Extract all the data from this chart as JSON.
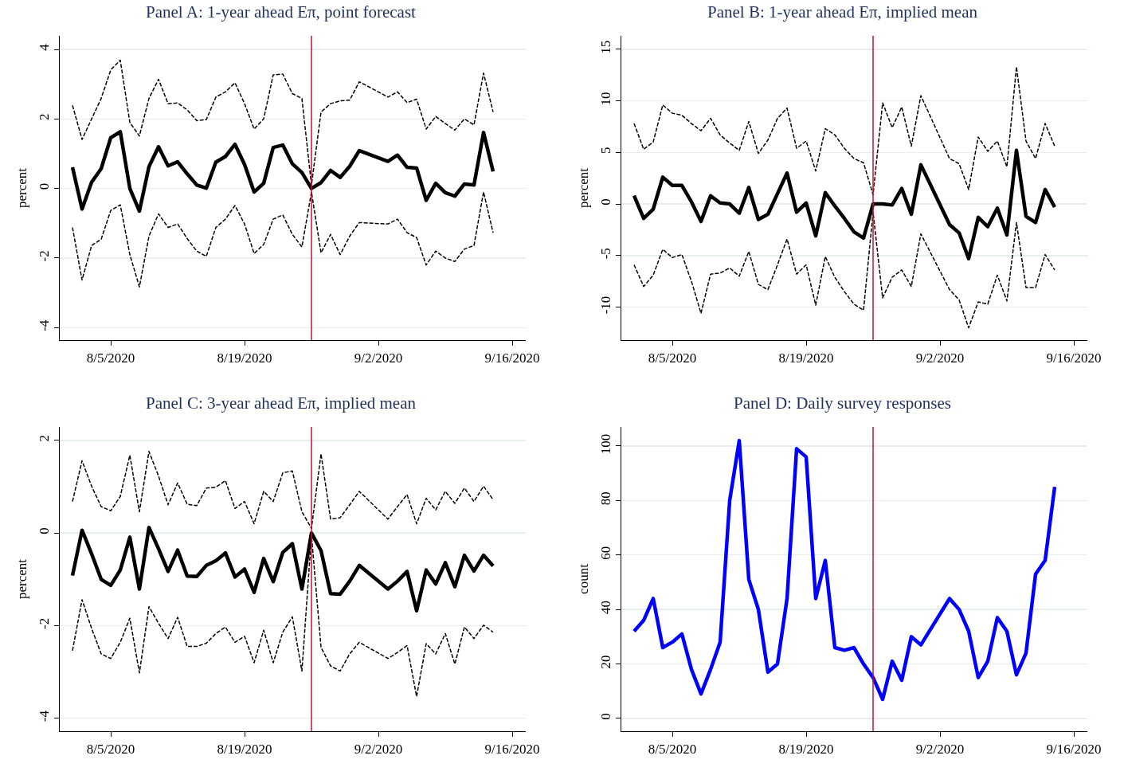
{
  "chart_data": [
    {
      "type": "line",
      "title": "Panel A: 1-year ahead Eπ, point forecast",
      "ylabel": "percent",
      "x": [
        "2020-08-01",
        "2020-08-02",
        "2020-08-03",
        "2020-08-04",
        "2020-08-05",
        "2020-08-06",
        "2020-08-07",
        "2020-08-08",
        "2020-08-09",
        "2020-08-10",
        "2020-08-11",
        "2020-08-12",
        "2020-08-13",
        "2020-08-14",
        "2020-08-15",
        "2020-08-16",
        "2020-08-17",
        "2020-08-18",
        "2020-08-19",
        "2020-08-20",
        "2020-08-21",
        "2020-08-22",
        "2020-08-23",
        "2020-08-24",
        "2020-08-25",
        "2020-08-26",
        "2020-08-27",
        "2020-08-28",
        "2020-08-29",
        "2020-08-30",
        "2020-08-31",
        "2020-09-03",
        "2020-09-04",
        "2020-09-05",
        "2020-09-06",
        "2020-09-07",
        "2020-09-08",
        "2020-09-09",
        "2020-09-10",
        "2020-09-11",
        "2020-09-12",
        "2020-09-13",
        "2020-09-14"
      ],
      "series": [
        {
          "color": "#000000",
          "line_style": "dashed",
          "values": [
            2.39,
            1.41,
            2.0,
            2.59,
            3.41,
            3.69,
            1.9,
            1.51,
            2.59,
            3.14,
            2.44,
            2.46,
            2.26,
            1.95,
            1.98,
            2.63,
            2.78,
            3.04,
            2.44,
            1.71,
            2.0,
            3.27,
            3.29,
            2.73,
            2.59,
            0.1,
            2.2,
            2.44,
            2.52,
            2.54,
            3.07,
            2.63,
            2.78,
            2.47,
            2.57,
            1.71,
            2.07,
            1.87,
            1.68,
            2.0,
            1.83,
            3.32,
            2.2
          ]
        },
        {
          "color": "#000000",
          "line_style": "solid",
          "values": [
            0.61,
            -0.59,
            0.18,
            0.57,
            1.46,
            1.63,
            0.0,
            -0.65,
            0.63,
            1.2,
            0.65,
            0.77,
            0.42,
            0.1,
            0.01,
            0.76,
            0.92,
            1.27,
            0.69,
            -0.1,
            0.15,
            1.18,
            1.25,
            0.71,
            0.46,
            0.0,
            0.17,
            0.52,
            0.32,
            0.64,
            1.09,
            0.78,
            0.96,
            0.61,
            0.59,
            -0.34,
            0.15,
            -0.12,
            -0.22,
            0.13,
            0.1,
            1.61,
            0.49
          ]
        },
        {
          "color": "#000000",
          "line_style": "dashed",
          "values": [
            -1.12,
            -2.63,
            -1.64,
            -1.46,
            -0.63,
            -0.47,
            -1.9,
            -2.83,
            -1.37,
            -0.73,
            -1.12,
            -1.02,
            -1.44,
            -1.8,
            -1.95,
            -1.12,
            -0.88,
            -0.49,
            -1.02,
            -1.87,
            -1.61,
            -0.88,
            -0.76,
            -1.32,
            -1.68,
            -0.1,
            -1.85,
            -1.32,
            -1.9,
            -1.37,
            -0.98,
            -1.02,
            -0.88,
            -1.27,
            -1.41,
            -2.2,
            -1.8,
            -2.0,
            -2.1,
            -1.74,
            -1.64,
            -0.1,
            -1.27
          ]
        }
      ],
      "xlim": [
        "2020-07-30T16:00",
        "2020-09-17T10:00"
      ],
      "xticks": [
        {
          "value": "2020-08-05",
          "label": "8/5/2020"
        },
        {
          "value": "2020-08-19",
          "label": "8/19/2020"
        },
        {
          "value": "2020-09-02",
          "label": "9/2/2020"
        },
        {
          "value": "2020-09-16",
          "label": "9/16/2020"
        }
      ],
      "ylim": [
        -4.36,
        4.39
      ],
      "yticks": [
        -4,
        -2,
        0,
        2,
        4
      ],
      "grid": "y",
      "ref_lines": [
        {
          "axis": "x",
          "value": "2020-08-26",
          "color": "#c8102e"
        }
      ]
    },
    {
      "type": "line",
      "title": "Panel B: 1-year ahead Eπ, implied mean",
      "ylabel": "percent",
      "x": [
        "2020-08-01",
        "2020-08-02",
        "2020-08-03",
        "2020-08-04",
        "2020-08-05",
        "2020-08-06",
        "2020-08-07",
        "2020-08-08",
        "2020-08-09",
        "2020-08-10",
        "2020-08-11",
        "2020-08-12",
        "2020-08-13",
        "2020-08-14",
        "2020-08-15",
        "2020-08-16",
        "2020-08-17",
        "2020-08-18",
        "2020-08-19",
        "2020-08-20",
        "2020-08-21",
        "2020-08-22",
        "2020-08-23",
        "2020-08-24",
        "2020-08-25",
        "2020-08-26",
        "2020-08-27",
        "2020-08-28",
        "2020-08-29",
        "2020-08-30",
        "2020-08-31",
        "2020-09-03",
        "2020-09-04",
        "2020-09-05",
        "2020-09-06",
        "2020-09-07",
        "2020-09-08",
        "2020-09-09",
        "2020-09-10",
        "2020-09-11",
        "2020-09-12",
        "2020-09-13",
        "2020-09-14"
      ],
      "series": [
        {
          "color": "#000000",
          "line_style": "dashed",
          "values": [
            7.8,
            5.3,
            6.0,
            9.6,
            8.8,
            8.6,
            7.8,
            7.1,
            8.3,
            6.7,
            5.9,
            5.2,
            8.0,
            4.9,
            6.2,
            8.3,
            9.3,
            5.4,
            6.1,
            3.2,
            7.3,
            6.7,
            5.4,
            4.4,
            4.0,
            0.9,
            9.8,
            7.4,
            9.4,
            5.6,
            10.5,
            4.4,
            3.9,
            1.4,
            6.5,
            5.1,
            6.1,
            3.6,
            13.3,
            6.1,
            4.4,
            7.8,
            5.6
          ]
        },
        {
          "color": "#000000",
          "line_style": "solid",
          "values": [
            0.8,
            -1.4,
            -0.5,
            2.6,
            1.8,
            1.8,
            0.2,
            -1.7,
            0.8,
            0.1,
            0.0,
            -0.9,
            1.6,
            -1.5,
            -1.0,
            1.0,
            3.0,
            -0.8,
            0.1,
            -3.1,
            1.1,
            -0.2,
            -1.4,
            -2.7,
            -3.3,
            0.0,
            0.0,
            -0.1,
            1.5,
            -1.0,
            3.8,
            -2.0,
            -2.8,
            -5.3,
            -1.3,
            -2.2,
            -0.4,
            -3.0,
            5.2,
            -1.2,
            -1.8,
            1.4,
            -0.3
          ]
        },
        {
          "color": "#000000",
          "line_style": "dashed",
          "values": [
            -5.9,
            -8.0,
            -6.9,
            -4.4,
            -5.2,
            -4.9,
            -7.5,
            -10.6,
            -6.8,
            -6.7,
            -6.2,
            -7.0,
            -4.6,
            -7.8,
            -8.3,
            -5.9,
            -3.4,
            -6.8,
            -5.9,
            -9.8,
            -5.1,
            -7.1,
            -8.5,
            -9.7,
            -10.3,
            -0.8,
            -9.1,
            -7.1,
            -6.4,
            -8.0,
            -2.9,
            -8.3,
            -9.3,
            -12.0,
            -9.5,
            -9.7,
            -6.9,
            -9.4,
            -1.8,
            -8.1,
            -8.1,
            -4.9,
            -6.4
          ]
        }
      ],
      "xlim": [
        "2020-07-30T16:00",
        "2020-09-17T10:00"
      ],
      "xticks": [
        {
          "value": "2020-08-05",
          "label": "8/5/2020"
        },
        {
          "value": "2020-08-19",
          "label": "8/19/2020"
        },
        {
          "value": "2020-09-02",
          "label": "9/2/2020"
        },
        {
          "value": "2020-09-16",
          "label": "9/16/2020"
        }
      ],
      "ylim": [
        -13.2,
        16.3
      ],
      "yticks": [
        -10,
        -5,
        0,
        5,
        10,
        15
      ],
      "grid": "y",
      "ref_lines": [
        {
          "axis": "x",
          "value": "2020-08-26",
          "color": "#c8102e"
        }
      ]
    },
    {
      "type": "line",
      "title": "Panel C: 3-year ahead Eπ, implied mean",
      "ylabel": "percent",
      "x": [
        "2020-08-01",
        "2020-08-02",
        "2020-08-03",
        "2020-08-04",
        "2020-08-05",
        "2020-08-06",
        "2020-08-07",
        "2020-08-08",
        "2020-08-09",
        "2020-08-10",
        "2020-08-11",
        "2020-08-12",
        "2020-08-13",
        "2020-08-14",
        "2020-08-15",
        "2020-08-16",
        "2020-08-17",
        "2020-08-18",
        "2020-08-19",
        "2020-08-20",
        "2020-08-21",
        "2020-08-22",
        "2020-08-23",
        "2020-08-24",
        "2020-08-25",
        "2020-08-26",
        "2020-08-27",
        "2020-08-28",
        "2020-08-29",
        "2020-08-30",
        "2020-08-31",
        "2020-09-03",
        "2020-09-04",
        "2020-09-05",
        "2020-09-06",
        "2020-09-07",
        "2020-09-08",
        "2020-09-09",
        "2020-09-10",
        "2020-09-11",
        "2020-09-12",
        "2020-09-13",
        "2020-09-14"
      ],
      "series": [
        {
          "color": "#000000",
          "line_style": "dashed",
          "values": [
            0.68,
            1.56,
            1.01,
            0.57,
            0.48,
            0.79,
            1.68,
            0.46,
            1.76,
            1.23,
            0.61,
            1.08,
            0.62,
            0.59,
            0.97,
            0.99,
            1.13,
            0.53,
            0.68,
            0.2,
            0.9,
            0.68,
            1.3,
            1.34,
            0.46,
            0.1,
            1.71,
            0.3,
            0.33,
            0.61,
            0.9,
            0.3,
            0.57,
            0.83,
            0.2,
            0.75,
            0.5,
            0.9,
            0.64,
            0.97,
            0.68,
            1.01,
            0.72
          ]
        },
        {
          "color": "#000000",
          "line_style": "solid",
          "values": [
            -0.92,
            0.06,
            -0.45,
            -1.0,
            -1.13,
            -0.8,
            -0.09,
            -1.21,
            0.12,
            -0.34,
            -0.83,
            -0.37,
            -0.93,
            -0.94,
            -0.7,
            -0.6,
            -0.43,
            -0.95,
            -0.78,
            -1.28,
            -0.55,
            -1.05,
            -0.42,
            -0.23,
            -1.21,
            0.0,
            -0.38,
            -1.31,
            -1.32,
            -1.04,
            -0.7,
            -1.21,
            -1.04,
            -0.83,
            -1.68,
            -0.8,
            -1.1,
            -0.64,
            -1.16,
            -0.48,
            -0.82,
            -0.48,
            -0.71
          ]
        },
        {
          "color": "#000000",
          "line_style": "dashed",
          "values": [
            -2.54,
            -1.44,
            -2.06,
            -2.61,
            -2.71,
            -2.36,
            -1.84,
            -3.02,
            -1.59,
            -1.95,
            -2.28,
            -1.82,
            -2.45,
            -2.45,
            -2.38,
            -2.17,
            -2.03,
            -2.36,
            -2.23,
            -2.8,
            -2.1,
            -2.8,
            -2.14,
            -1.81,
            -2.98,
            -0.05,
            -2.47,
            -2.87,
            -2.98,
            -2.61,
            -2.36,
            -2.71,
            -2.58,
            -2.43,
            -3.53,
            -2.39,
            -2.61,
            -2.17,
            -2.83,
            -2.03,
            -2.28,
            -1.99,
            -2.14
          ]
        }
      ],
      "xlim": [
        "2020-07-30T16:00",
        "2020-09-17T10:00"
      ],
      "xticks": [
        {
          "value": "2020-08-05",
          "label": "8/5/2020"
        },
        {
          "value": "2020-08-19",
          "label": "8/19/2020"
        },
        {
          "value": "2020-09-02",
          "label": "9/2/2020"
        },
        {
          "value": "2020-09-16",
          "label": "9/16/2020"
        }
      ],
      "ylim": [
        -4.28,
        2.29
      ],
      "yticks": [
        -4,
        -2,
        0,
        2
      ],
      "grid": "y",
      "ref_lines": [
        {
          "axis": "x",
          "value": "2020-08-26",
          "color": "#c8102e"
        }
      ]
    },
    {
      "type": "line",
      "title": "Panel D: Daily survey responses",
      "ylabel": "count",
      "x": [
        "2020-08-01",
        "2020-08-02",
        "2020-08-03",
        "2020-08-04",
        "2020-08-05",
        "2020-08-06",
        "2020-08-07",
        "2020-08-08",
        "2020-08-09",
        "2020-08-10",
        "2020-08-11",
        "2020-08-12",
        "2020-08-13",
        "2020-08-14",
        "2020-08-15",
        "2020-08-16",
        "2020-08-17",
        "2020-08-18",
        "2020-08-19",
        "2020-08-20",
        "2020-08-21",
        "2020-08-22",
        "2020-08-23",
        "2020-08-24",
        "2020-08-25",
        "2020-08-26",
        "2020-08-27",
        "2020-08-28",
        "2020-08-29",
        "2020-08-30",
        "2020-08-31",
        "2020-09-03",
        "2020-09-04",
        "2020-09-05",
        "2020-09-06",
        "2020-09-07",
        "2020-09-08",
        "2020-09-09",
        "2020-09-10",
        "2020-09-11",
        "2020-09-12",
        "2020-09-13",
        "2020-09-14"
      ],
      "series": [
        {
          "color": "#0000ff",
          "line_style": "solid",
          "values": [
            32,
            36,
            44,
            26,
            28,
            31,
            18,
            9,
            18,
            28,
            80,
            102,
            51,
            40,
            17,
            20,
            44,
            99,
            96,
            44,
            58,
            26,
            25,
            26,
            20,
            15,
            7,
            21,
            14,
            30,
            27,
            44,
            40,
            32,
            15,
            21,
            37,
            32,
            16,
            24,
            53,
            58,
            85
          ]
        }
      ],
      "xlim": [
        "2020-07-30T16:00",
        "2020-09-17T10:00"
      ],
      "xticks": [
        {
          "value": "2020-08-05",
          "label": "8/5/2020"
        },
        {
          "value": "2020-08-19",
          "label": "8/19/2020"
        },
        {
          "value": "2020-09-02",
          "label": "9/2/2020"
        },
        {
          "value": "2020-09-16",
          "label": "9/16/2020"
        }
      ],
      "ylim": [
        -4.7,
        107
      ],
      "yticks": [
        0,
        20,
        40,
        60,
        80,
        100
      ],
      "grid": "y",
      "ref_lines": [
        {
          "axis": "x",
          "value": "2020-08-26",
          "color": "#c8102e"
        }
      ]
    }
  ]
}
